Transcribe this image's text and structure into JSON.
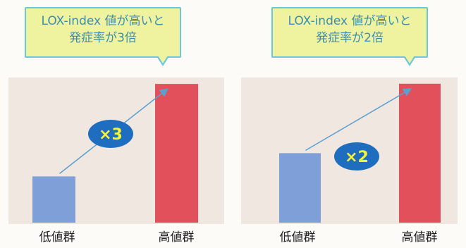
{
  "chart_data": [
    {
      "type": "bar",
      "title": "",
      "callout_lines": [
        "LOX-index 値が高いと",
        "発症率が3倍"
      ],
      "categories": [
        "低値群",
        "高値群"
      ],
      "values": [
        1,
        3
      ],
      "ylim": [
        0,
        3.2
      ],
      "multiplier_label": "×3",
      "bar_colors": [
        "#7f9fd8",
        "#e2505c"
      ],
      "grid": false,
      "legend": "none"
    },
    {
      "type": "bar",
      "title": "",
      "callout_lines": [
        "LOX-index 値が高いと",
        "発症率が2倍"
      ],
      "categories": [
        "低値群",
        "高値群"
      ],
      "values": [
        1,
        2
      ],
      "ylim": [
        0,
        2.13
      ],
      "multiplier_label": "×2",
      "bar_colors": [
        "#7f9fd8",
        "#e2505c"
      ],
      "grid": false,
      "legend": "none"
    }
  ],
  "colors": {
    "callout_fill": "#eff29f",
    "callout_border": "#6ec7d8",
    "callout_text": "#3a8fb0",
    "badge_fill": "#1f6dbf",
    "badge_text": "#f7f23a",
    "arrow": "#5aa0d0",
    "plot_background": "#f0e7e1"
  }
}
